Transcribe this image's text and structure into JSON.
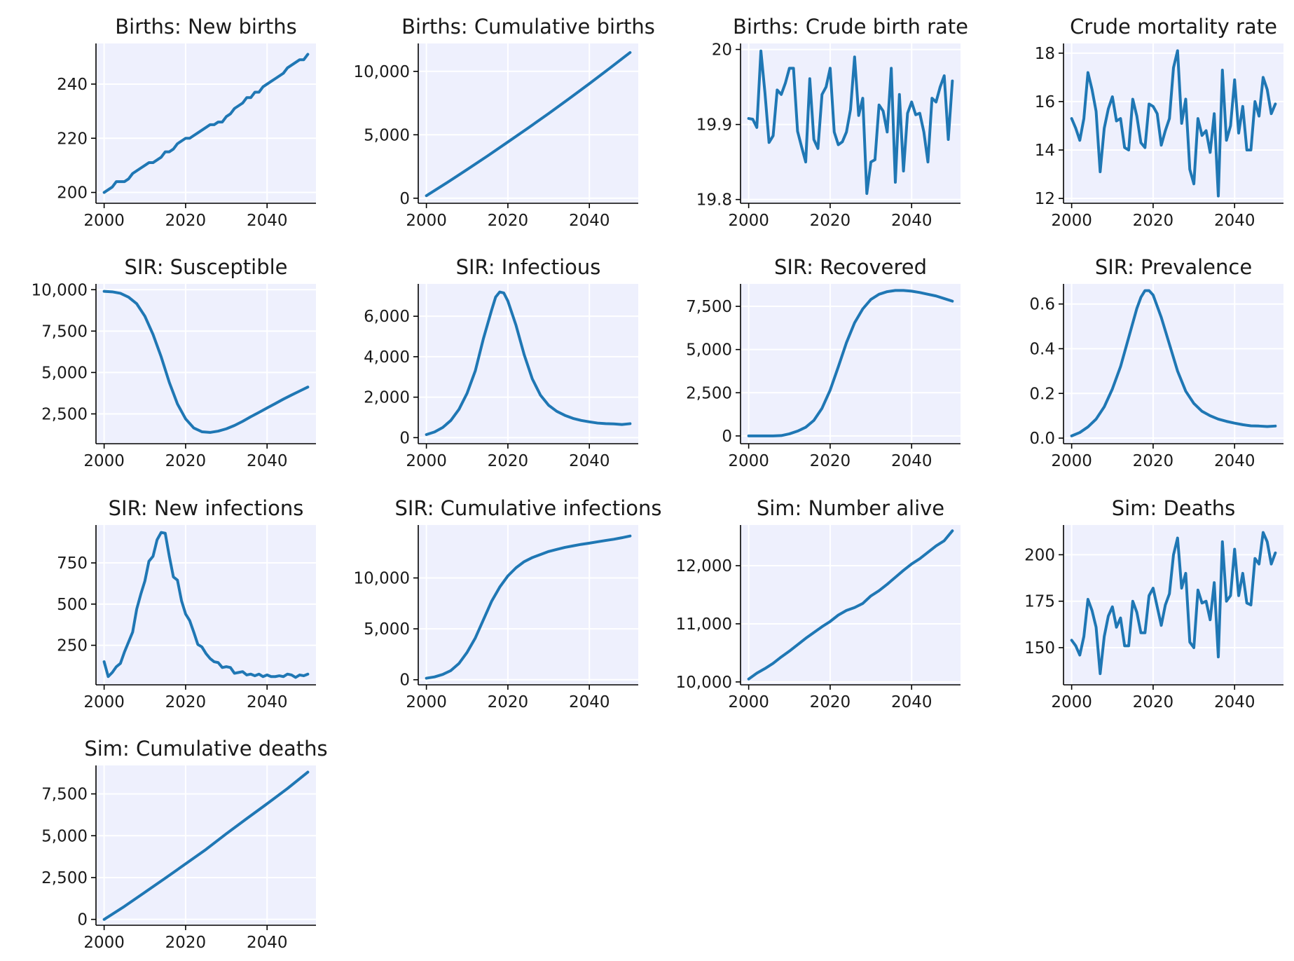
{
  "chart_data": [
    {
      "type": "line",
      "title": "Births: New births",
      "xlim": [
        1998,
        2052
      ],
      "ylim": [
        196,
        255
      ],
      "xticks": [
        2000,
        2020,
        2040
      ],
      "xtick_labels": [
        "2000",
        "2020",
        "2040"
      ],
      "yticks": [
        200,
        220,
        240
      ],
      "ytick_labels": [
        "200",
        "220",
        "240"
      ],
      "x": [
        2000,
        2001,
        2002,
        2003,
        2004,
        2005,
        2006,
        2007,
        2008,
        2009,
        2010,
        2011,
        2012,
        2013,
        2014,
        2015,
        2016,
        2017,
        2018,
        2019,
        2020,
        2021,
        2022,
        2023,
        2024,
        2025,
        2026,
        2027,
        2028,
        2029,
        2030,
        2031,
        2032,
        2033,
        2034,
        2035,
        2036,
        2037,
        2038,
        2039,
        2040,
        2041,
        2042,
        2043,
        2044,
        2045,
        2046,
        2047,
        2048,
        2049,
        2050
      ],
      "y": [
        200,
        201,
        202,
        204,
        204,
        204,
        205,
        207,
        208,
        209,
        210,
        211,
        211,
        212,
        213,
        215,
        215,
        216,
        218,
        219,
        220,
        220,
        221,
        222,
        223,
        224,
        225,
        225,
        226,
        226,
        228,
        229,
        231,
        232,
        233,
        235,
        235,
        237,
        237,
        239,
        240,
        241,
        242,
        243,
        244,
        246,
        247,
        248,
        249,
        249,
        251
      ]
    },
    {
      "type": "line",
      "title": "Births: Cumulative births",
      "xlim": [
        1998,
        2052
      ],
      "ylim": [
        -400,
        12200
      ],
      "xticks": [
        2000,
        2020,
        2040
      ],
      "xtick_labels": [
        "2000",
        "2020",
        "2040"
      ],
      "yticks": [
        0,
        5000,
        10000
      ],
      "ytick_labels": [
        "0",
        "5,000",
        "10,000"
      ],
      "x": [
        2000,
        2005,
        2010,
        2015,
        2020,
        2025,
        2030,
        2035,
        2040,
        2045,
        2050
      ],
      "y": [
        200,
        1211,
        2261,
        3330,
        4431,
        5540,
        6674,
        7842,
        9028,
        10250,
        11485
      ]
    },
    {
      "type": "line",
      "title": "Births: Crude birth rate",
      "xlim": [
        1998,
        2052
      ],
      "ylim": [
        19.795,
        20.008
      ],
      "xticks": [
        2000,
        2020,
        2040
      ],
      "xtick_labels": [
        "2000",
        "2020",
        "2040"
      ],
      "yticks": [
        19.8,
        19.9,
        20.0
      ],
      "ytick_labels": [
        "19.8",
        "19.9",
        "20"
      ],
      "x": [
        2000,
        2001,
        2002,
        2003,
        2004,
        2005,
        2006,
        2007,
        2008,
        2009,
        2010,
        2011,
        2012,
        2013,
        2014,
        2015,
        2016,
        2017,
        2018,
        2019,
        2020,
        2021,
        2022,
        2023,
        2024,
        2025,
        2026,
        2027,
        2028,
        2029,
        2030,
        2031,
        2032,
        2033,
        2034,
        2035,
        2036,
        2037,
        2038,
        2039,
        2040,
        2041,
        2042,
        2043,
        2044,
        2045,
        2046,
        2047,
        2048,
        2049,
        2050
      ],
      "y": [
        19.908,
        19.907,
        19.896,
        19.998,
        19.942,
        19.876,
        19.885,
        19.946,
        19.94,
        19.955,
        19.975,
        19.975,
        19.891,
        19.87,
        19.85,
        19.961,
        19.88,
        19.868,
        19.94,
        19.95,
        19.975,
        19.89,
        19.873,
        19.877,
        19.89,
        19.92,
        19.99,
        19.912,
        19.935,
        19.808,
        19.85,
        19.853,
        19.926,
        19.918,
        19.89,
        19.975,
        19.823,
        19.94,
        19.838,
        19.915,
        19.93,
        19.913,
        19.915,
        19.89,
        19.85,
        19.935,
        19.93,
        19.95,
        19.965,
        19.88,
        19.958
      ]
    },
    {
      "type": "line",
      "title": "Crude mortality rate",
      "xlim": [
        1998,
        2052
      ],
      "ylim": [
        11.8,
        18.4
      ],
      "xticks": [
        2000,
        2020,
        2040
      ],
      "xtick_labels": [
        "2000",
        "2020",
        "2040"
      ],
      "yticks": [
        12,
        14,
        16,
        18
      ],
      "ytick_labels": [
        "12",
        "14",
        "16",
        "18"
      ],
      "x": [
        2000,
        2001,
        2002,
        2003,
        2004,
        2005,
        2006,
        2007,
        2008,
        2009,
        2010,
        2011,
        2012,
        2013,
        2014,
        2015,
        2016,
        2017,
        2018,
        2019,
        2020,
        2021,
        2022,
        2023,
        2024,
        2025,
        2026,
        2027,
        2028,
        2029,
        2030,
        2031,
        2032,
        2033,
        2034,
        2035,
        2036,
        2037,
        2038,
        2039,
        2040,
        2041,
        2042,
        2043,
        2044,
        2045,
        2046,
        2047,
        2048,
        2049,
        2050
      ],
      "y": [
        15.3,
        14.9,
        14.4,
        15.3,
        17.2,
        16.5,
        15.6,
        13.1,
        14.9,
        15.7,
        16.2,
        15.2,
        15.3,
        14.1,
        14.0,
        16.1,
        15.4,
        14.3,
        14.1,
        15.9,
        15.8,
        15.5,
        14.2,
        14.8,
        15.3,
        17.4,
        18.1,
        15.1,
        16.1,
        13.2,
        12.6,
        15.3,
        14.6,
        14.8,
        13.9,
        15.5,
        12.1,
        17.3,
        14.4,
        15.0,
        16.9,
        14.7,
        15.8,
        14.0,
        14.0,
        16.0,
        15.4,
        17.0,
        16.5,
        15.5,
        15.9
      ]
    },
    {
      "type": "line",
      "title": "SIR: Susceptible",
      "xlim": [
        1998,
        2052
      ],
      "ylim": [
        700,
        10350
      ],
      "xticks": [
        2000,
        2020,
        2040
      ],
      "xtick_labels": [
        "2000",
        "2020",
        "2040"
      ],
      "yticks": [
        2500,
        5000,
        7500,
        10000
      ],
      "ytick_labels": [
        "2,500",
        "5,000",
        "7,500",
        "10,000"
      ],
      "x": [
        2000,
        2002,
        2004,
        2006,
        2008,
        2010,
        2012,
        2014,
        2016,
        2018,
        2020,
        2022,
        2024,
        2026,
        2028,
        2030,
        2032,
        2034,
        2036,
        2038,
        2040,
        2042,
        2044,
        2046,
        2048,
        2050
      ],
      "y": [
        9900,
        9870,
        9780,
        9550,
        9150,
        8400,
        7300,
        5950,
        4400,
        3100,
        2200,
        1650,
        1420,
        1380,
        1460,
        1600,
        1800,
        2050,
        2330,
        2590,
        2860,
        3120,
        3390,
        3640,
        3880,
        4120
      ]
    },
    {
      "type": "line",
      "title": "SIR: Infectious",
      "xlim": [
        1998,
        2052
      ],
      "ylim": [
        -300,
        7600
      ],
      "xticks": [
        2000,
        2020,
        2040
      ],
      "xtick_labels": [
        "2000",
        "2020",
        "2040"
      ],
      "yticks": [
        0,
        2000,
        4000,
        6000
      ],
      "ytick_labels": [
        "0",
        "2,000",
        "4,000",
        "6,000"
      ],
      "x": [
        2000,
        2002,
        2004,
        2006,
        2008,
        2010,
        2012,
        2014,
        2016,
        2017,
        2018,
        2019,
        2020,
        2022,
        2024,
        2026,
        2028,
        2030,
        2032,
        2034,
        2036,
        2038,
        2040,
        2042,
        2044,
        2046,
        2048,
        2050
      ],
      "y": [
        150,
        280,
        500,
        850,
        1400,
        2200,
        3300,
        4900,
        6300,
        6950,
        7200,
        7150,
        6750,
        5550,
        4100,
        2900,
        2100,
        1600,
        1300,
        1100,
        950,
        850,
        780,
        720,
        690,
        680,
        650,
        690
      ]
    },
    {
      "type": "line",
      "title": "SIR: Recovered",
      "xlim": [
        1998,
        2052
      ],
      "ylim": [
        -450,
        8800
      ],
      "xticks": [
        2000,
        2020,
        2040
      ],
      "xtick_labels": [
        "2000",
        "2020",
        "2040"
      ],
      "yticks": [
        0,
        2500,
        5000,
        7500
      ],
      "ytick_labels": [
        "0",
        "2,500",
        "5,000",
        "7,500"
      ],
      "x": [
        2000,
        2002,
        2004,
        2006,
        2008,
        2010,
        2012,
        2014,
        2016,
        2018,
        2020,
        2022,
        2024,
        2026,
        2028,
        2030,
        2032,
        2034,
        2036,
        2038,
        2040,
        2042,
        2044,
        2046,
        2048,
        2050
      ],
      "y": [
        0,
        0,
        0,
        0,
        20,
        120,
        280,
        500,
        900,
        1600,
        2650,
        4000,
        5400,
        6550,
        7350,
        7900,
        8200,
        8350,
        8420,
        8420,
        8380,
        8300,
        8200,
        8100,
        7950,
        7800
      ]
    },
    {
      "type": "line",
      "title": "SIR: Prevalence",
      "xlim": [
        1998,
        2052
      ],
      "ylim": [
        -0.025,
        0.69
      ],
      "xticks": [
        2000,
        2020,
        2040
      ],
      "xtick_labels": [
        "2000",
        "2020",
        "2040"
      ],
      "yticks": [
        0.0,
        0.2,
        0.4,
        0.6
      ],
      "ytick_labels": [
        "0.0",
        "0.2",
        "0.4",
        "0.6"
      ],
      "x": [
        2000,
        2002,
        2004,
        2006,
        2008,
        2010,
        2012,
        2014,
        2016,
        2017,
        2018,
        2019,
        2020,
        2022,
        2024,
        2026,
        2028,
        2030,
        2032,
        2034,
        2036,
        2038,
        2040,
        2042,
        2044,
        2046,
        2048,
        2050
      ],
      "y": [
        0.01,
        0.025,
        0.05,
        0.085,
        0.14,
        0.22,
        0.32,
        0.45,
        0.58,
        0.63,
        0.66,
        0.66,
        0.64,
        0.54,
        0.42,
        0.3,
        0.21,
        0.155,
        0.12,
        0.1,
        0.085,
        0.075,
        0.067,
        0.06,
        0.055,
        0.054,
        0.052,
        0.054
      ]
    },
    {
      "type": "line",
      "title": "SIR: New infections",
      "xlim": [
        1998,
        2052
      ],
      "ylim": [
        10,
        980
      ],
      "xticks": [
        2000,
        2020,
        2040
      ],
      "xtick_labels": [
        "2000",
        "2020",
        "2040"
      ],
      "yticks": [
        250,
        500,
        750
      ],
      "ytick_labels": [
        "250",
        "500",
        "750"
      ],
      "x": [
        2000,
        2001,
        2002,
        2003,
        2004,
        2005,
        2006,
        2007,
        2008,
        2009,
        2010,
        2011,
        2012,
        2013,
        2014,
        2015,
        2016,
        2017,
        2018,
        2019,
        2020,
        2021,
        2022,
        2023,
        2024,
        2025,
        2026,
        2027,
        2028,
        2029,
        2030,
        2031,
        2032,
        2033,
        2034,
        2035,
        2036,
        2037,
        2038,
        2039,
        2040,
        2041,
        2042,
        2043,
        2044,
        2045,
        2046,
        2047,
        2048,
        2049,
        2050
      ],
      "y": [
        150,
        60,
        85,
        120,
        140,
        210,
        270,
        330,
        470,
        560,
        640,
        760,
        790,
        890,
        935,
        930,
        790,
        665,
        645,
        520,
        440,
        400,
        330,
        255,
        240,
        200,
        170,
        150,
        145,
        115,
        120,
        115,
        80,
        85,
        90,
        70,
        75,
        65,
        75,
        60,
        70,
        60,
        60,
        65,
        60,
        75,
        70,
        55,
        70,
        65,
        75
      ]
    },
    {
      "type": "line",
      "title": "SIR: Cumulative infections",
      "xlim": [
        1998,
        2052
      ],
      "ylim": [
        -500,
        15200
      ],
      "xticks": [
        2000,
        2020,
        2040
      ],
      "xtick_labels": [
        "2000",
        "2020",
        "2040"
      ],
      "yticks": [
        0,
        5000,
        10000
      ],
      "ytick_labels": [
        "0",
        "5,000",
        "10,000"
      ],
      "x": [
        2000,
        2002,
        2004,
        2006,
        2008,
        2010,
        2012,
        2014,
        2016,
        2018,
        2020,
        2022,
        2024,
        2026,
        2028,
        2030,
        2032,
        2034,
        2036,
        2038,
        2040,
        2042,
        2044,
        2046,
        2048,
        2050
      ],
      "y": [
        150,
        280,
        520,
        900,
        1600,
        2700,
        4100,
        5900,
        7700,
        9100,
        10200,
        11000,
        11600,
        12000,
        12300,
        12600,
        12800,
        13000,
        13150,
        13300,
        13420,
        13550,
        13680,
        13800,
        13950,
        14120
      ]
    },
    {
      "type": "line",
      "title": "Sim: Number alive",
      "xlim": [
        1998,
        2052
      ],
      "ylim": [
        9950,
        12700
      ],
      "xticks": [
        2000,
        2020,
        2040
      ],
      "xtick_labels": [
        "2000",
        "2020",
        "2040"
      ],
      "yticks": [
        10000,
        11000,
        12000
      ],
      "ytick_labels": [
        "10,000",
        "11,000",
        "12,000"
      ],
      "x": [
        2000,
        2002,
        2004,
        2006,
        2008,
        2010,
        2012,
        2014,
        2016,
        2018,
        2020,
        2022,
        2024,
        2026,
        2028,
        2030,
        2032,
        2034,
        2036,
        2038,
        2040,
        2042,
        2044,
        2046,
        2048,
        2050
      ],
      "y": [
        10050,
        10150,
        10230,
        10320,
        10430,
        10530,
        10640,
        10750,
        10850,
        10950,
        11040,
        11150,
        11230,
        11280,
        11350,
        11480,
        11570,
        11680,
        11800,
        11920,
        12030,
        12120,
        12230,
        12340,
        12430,
        12600
      ]
    },
    {
      "type": "line",
      "title": "Sim: Deaths",
      "xlim": [
        1998,
        2052
      ],
      "ylim": [
        130,
        216
      ],
      "xticks": [
        2000,
        2020,
        2040
      ],
      "xtick_labels": [
        "2000",
        "2020",
        "2040"
      ],
      "yticks": [
        150,
        175,
        200
      ],
      "ytick_labels": [
        "150",
        "175",
        "200"
      ],
      "x": [
        2000,
        2001,
        2002,
        2003,
        2004,
        2005,
        2006,
        2007,
        2008,
        2009,
        2010,
        2011,
        2012,
        2013,
        2014,
        2015,
        2016,
        2017,
        2018,
        2019,
        2020,
        2021,
        2022,
        2023,
        2024,
        2025,
        2026,
        2027,
        2028,
        2029,
        2030,
        2031,
        2032,
        2033,
        2034,
        2035,
        2036,
        2037,
        2038,
        2039,
        2040,
        2041,
        2042,
        2043,
        2044,
        2045,
        2046,
        2047,
        2048,
        2049,
        2050
      ],
      "y": [
        154,
        151,
        146,
        156,
        176,
        170,
        161,
        136,
        156,
        167,
        172,
        161,
        166,
        151,
        151,
        175,
        169,
        158,
        158,
        178,
        182,
        172,
        162,
        173,
        179,
        200,
        209,
        182,
        190,
        153,
        150,
        181,
        174,
        175,
        165,
        185,
        145,
        207,
        175,
        178,
        203,
        178,
        190,
        174,
        173,
        198,
        195,
        212,
        207,
        195,
        201
      ]
    },
    {
      "type": "line",
      "title": "Sim: Cumulative deaths",
      "xlim": [
        1998,
        2052
      ],
      "ylim": [
        -350,
        9200
      ],
      "xticks": [
        2000,
        2020,
        2040
      ],
      "xtick_labels": [
        "2000",
        "2020",
        "2040"
      ],
      "yticks": [
        0,
        2500,
        5000,
        7500
      ],
      "ytick_labels": [
        "0",
        "2,500",
        "5,000",
        "7,500"
      ],
      "x": [
        2000,
        2005,
        2010,
        2015,
        2020,
        2025,
        2030,
        2035,
        2040,
        2045,
        2050
      ],
      "y": [
        0,
        780,
        1620,
        2460,
        3320,
        4180,
        5120,
        6020,
        6910,
        7820,
        8800
      ]
    }
  ]
}
